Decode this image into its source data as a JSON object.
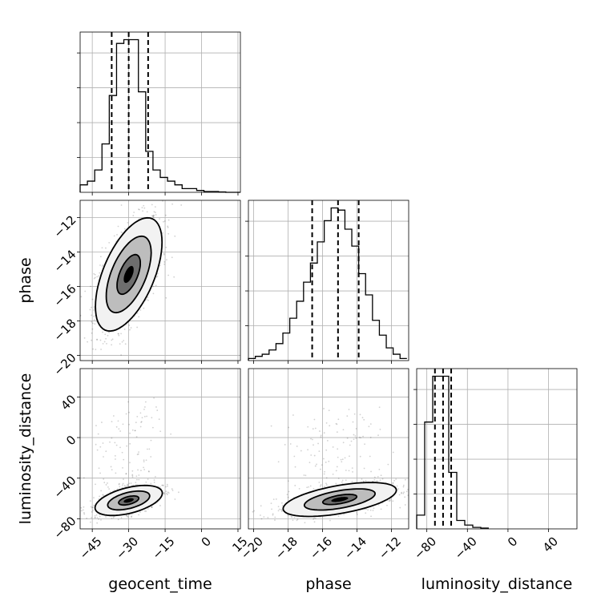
{
  "chart_data": {
    "type": "corner",
    "parameters": [
      {
        "key": "geocent_time",
        "label": "geocent_time",
        "range": [
          -50,
          16
        ],
        "ticks": [
          -45,
          -30,
          -15,
          0,
          15
        ],
        "tick_labels": [
          "−45",
          "−30",
          "−15",
          "0",
          "15"
        ],
        "quantiles": [
          -37,
          -30,
          -22
        ],
        "hist_edges": [
          -50,
          -47,
          -44,
          -41,
          -38,
          -35,
          -32,
          -29,
          -26,
          -23,
          -20,
          -17,
          -14,
          -11,
          -8,
          -5,
          -2,
          1,
          4,
          7,
          10,
          13,
          16
        ],
        "hist_counts": [
          2,
          3,
          6,
          13,
          26,
          40,
          41,
          41,
          27,
          11,
          6,
          4,
          3,
          2,
          1,
          1,
          0.5,
          0.2,
          0.2,
          0.1,
          0,
          0
        ]
      },
      {
        "key": "phase",
        "label": "phase",
        "range": [
          -20.3,
          -11
        ],
        "ticks": [
          -20,
          -18,
          -16,
          -14,
          -12
        ],
        "tick_labels": [
          "−20",
          "−18",
          "−16",
          "−14",
          "−12"
        ],
        "quantiles": [
          -16.6,
          -15.1,
          -13.9
        ],
        "hist_edges": [
          -20.3,
          -19.9,
          -19.5,
          -19.1,
          -18.7,
          -18.3,
          -17.9,
          -17.5,
          -17.1,
          -16.7,
          -16.3,
          -15.9,
          -15.5,
          -15.1,
          -14.7,
          -14.3,
          -13.9,
          -13.5,
          -13.1,
          -12.7,
          -12.3,
          -11.9,
          -11.5,
          -11.1
        ],
        "hist_counts": [
          1,
          2,
          3,
          5,
          8,
          13,
          20,
          28,
          37,
          46,
          56,
          66,
          72,
          71,
          62,
          54,
          41,
          31,
          19,
          12,
          6,
          3,
          1
        ]
      },
      {
        "key": "luminosity_distance",
        "label": "luminosity_distance",
        "range": [
          -90,
          68
        ],
        "ticks": [
          -80,
          -40,
          0,
          40
        ],
        "tick_labels": [
          "−80",
          "−40",
          "0",
          "40"
        ],
        "quantiles": [
          -72,
          -64,
          -56
        ],
        "hist_edges": [
          -90,
          -82.1,
          -74.2,
          -66.3,
          -58.4,
          -50.5,
          -42.6,
          -34.7,
          -26.8,
          -18.9
        ],
        "hist_counts": [
          18,
          140,
          200,
          200,
          74,
          11,
          5,
          2,
          1
        ]
      }
    ],
    "contours": [
      {
        "x_param": "geocent_time",
        "y_param": "phase",
        "center": [
          -30,
          -15.3
        ],
        "cov": [
          [
            47,
            6.4
          ],
          [
            6.4,
            2.7
          ]
        ],
        "levels": [
          0.7,
          1.35,
          2.0
        ],
        "scatter_count": 1100
      },
      {
        "x_param": "geocent_time",
        "y_param": "luminosity_distance",
        "center": [
          -30,
          -62
        ],
        "cov": [
          [
            48,
            25
          ],
          [
            25,
            55
          ]
        ],
        "levels": [
          0.6,
          1.25,
          2.0
        ],
        "scatter_count": 900
      },
      {
        "x_param": "phase",
        "y_param": "luminosity_distance",
        "center": [
          -15,
          -61
        ],
        "cov": [
          [
            2.7,
            7.5
          ],
          [
            7.5,
            70
          ]
        ],
        "levels": [
          0.6,
          1.25,
          2.0
        ],
        "scatter_count": 1000
      }
    ],
    "grid": true,
    "quantile_style": "dashed"
  }
}
